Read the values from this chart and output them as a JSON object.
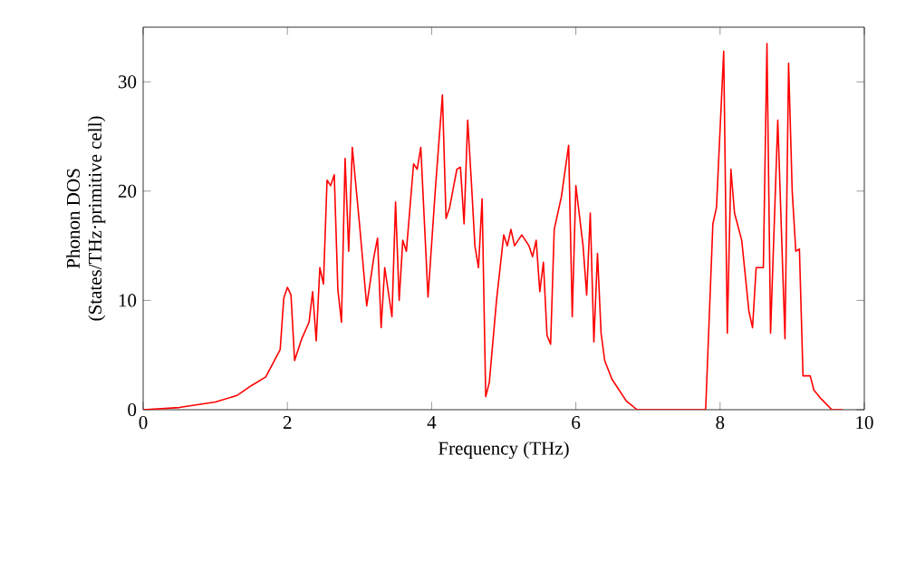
{
  "chart_data": {
    "type": "line",
    "xlabel": "Frequency (THz)",
    "ylabel": "Phonon DOS\n(States/THz·primitive cell)",
    "xlim": [
      0,
      10
    ],
    "ylim": [
      0,
      35
    ],
    "xticks": [
      0,
      2,
      4,
      6,
      8,
      10
    ],
    "yticks": [
      0,
      10,
      20,
      30
    ],
    "grid": false,
    "marker": "none",
    "line_style": "solid",
    "series": [
      {
        "color": "#ff0000",
        "x": [
          0,
          0.5,
          1,
          1.3,
          1.5,
          1.7,
          1.9,
          1.95,
          2.0,
          2.05,
          2.1,
          2.2,
          2.3,
          2.35,
          2.4,
          2.45,
          2.5,
          2.55,
          2.6,
          2.65,
          2.7,
          2.75,
          2.8,
          2.85,
          2.9,
          3.0,
          3.1,
          3.2,
          3.25,
          3.3,
          3.35,
          3.45,
          3.5,
          3.55,
          3.6,
          3.65,
          3.75,
          3.8,
          3.85,
          3.95,
          4.05,
          4.15,
          4.2,
          4.25,
          4.35,
          4.4,
          4.45,
          4.5,
          4.55,
          4.6,
          4.65,
          4.7,
          4.75,
          4.8,
          4.9,
          5.0,
          5.05,
          5.1,
          5.15,
          5.25,
          5.35,
          5.4,
          5.45,
          5.5,
          5.55,
          5.6,
          5.65,
          5.7,
          5.8,
          5.9,
          5.95,
          6.0,
          6.1,
          6.15,
          6.2,
          6.25,
          6.3,
          6.35,
          6.4,
          6.5,
          6.7,
          6.85,
          7.8,
          7.9,
          7.95,
          8.05,
          8.1,
          8.15,
          8.2,
          8.3,
          8.4,
          8.45,
          8.5,
          8.6,
          8.65,
          8.7,
          8.8,
          8.9,
          8.95,
          9.0,
          9.05,
          9.1,
          9.15,
          9.25,
          9.3,
          9.4,
          9.55,
          9.7
        ],
        "values": [
          0,
          0.2,
          0.7,
          1.3,
          2.2,
          3,
          5.5,
          10.2,
          11.2,
          10.5,
          4.5,
          6.5,
          8,
          10.8,
          6.3,
          13,
          11.5,
          21,
          20.5,
          21.5,
          11,
          8,
          23,
          14.5,
          24,
          17,
          9.5,
          14,
          15.7,
          7.5,
          13,
          8.5,
          19,
          10,
          15.5,
          14.5,
          22.5,
          22,
          24,
          10.3,
          20,
          28.8,
          17.5,
          18.5,
          22,
          22.2,
          17,
          26.5,
          21,
          15,
          13,
          19.3,
          1.2,
          2.5,
          10,
          16,
          15,
          16.5,
          15,
          16,
          15,
          14,
          15.5,
          10.8,
          13.5,
          6.8,
          6,
          16.5,
          19.5,
          24.2,
          8.5,
          20.5,
          15,
          10.5,
          18,
          6.2,
          14.3,
          7,
          4.5,
          2.8,
          0.8,
          0,
          0,
          17,
          18.5,
          32.8,
          7,
          22,
          18,
          15.5,
          9,
          7.5,
          13,
          13,
          33.5,
          7,
          26.5,
          6.5,
          31.7,
          20,
          14.5,
          14.7,
          3.1,
          3.1,
          1.8,
          1,
          0,
          0
        ]
      }
    ]
  }
}
